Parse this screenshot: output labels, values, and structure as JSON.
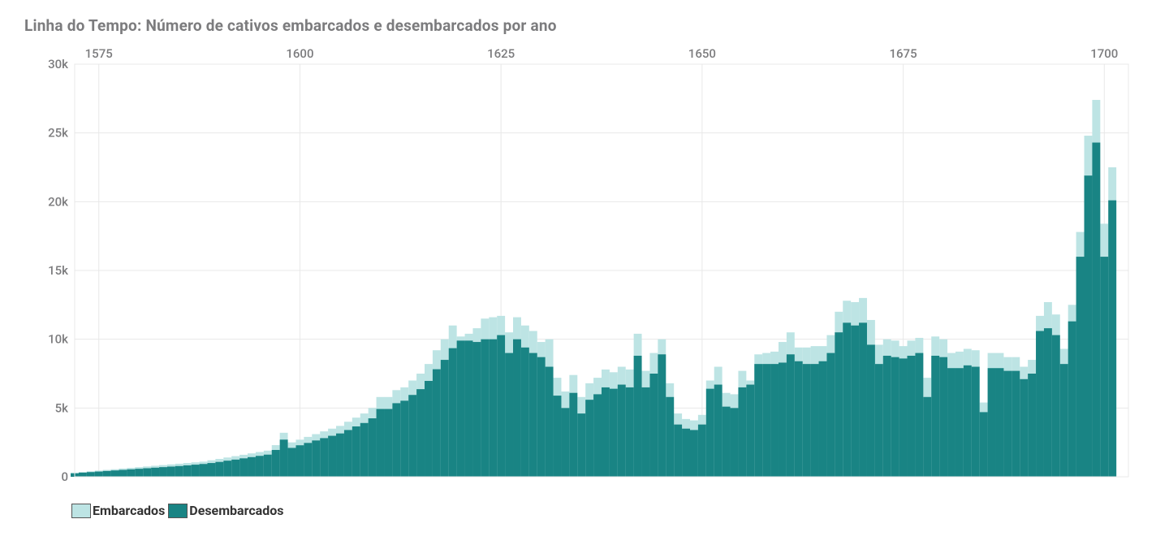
{
  "title": "Linha do Tempo: Número de cativos embarcados e desembarcados por ano",
  "chart": {
    "type": "bar-overlay",
    "background_color": "#ffffff",
    "grid_color": "#e8e8e8",
    "axis_label_color": "#7c7c7e",
    "title_color": "#7c7c7e",
    "title_fontsize": 19,
    "axis_label_fontsize": 15,
    "xlim": [
      1572,
      1703
    ],
    "ylim": [
      0,
      30000
    ],
    "x_ticks": [
      1575,
      1600,
      1625,
      1650,
      1675,
      1700
    ],
    "y_ticks": [
      0,
      5000,
      10000,
      15000,
      20000,
      25000,
      30000
    ],
    "y_tick_labels": [
      "0",
      "5k",
      "10k",
      "15k",
      "20k",
      "25k",
      "30k"
    ],
    "bar_width_years": 1,
    "series": [
      {
        "name": "Embarcados",
        "color": "#bde4e4",
        "legend_label": "Embarcados"
      },
      {
        "name": "Desembarcados",
        "color": "#198484",
        "legend_label": "Desembarcados"
      }
    ],
    "years": [
      1572,
      1573,
      1574,
      1575,
      1576,
      1577,
      1578,
      1579,
      1580,
      1581,
      1582,
      1583,
      1584,
      1585,
      1586,
      1587,
      1588,
      1589,
      1590,
      1591,
      1592,
      1593,
      1594,
      1595,
      1596,
      1597,
      1598,
      1599,
      1600,
      1601,
      1602,
      1603,
      1604,
      1605,
      1606,
      1607,
      1608,
      1609,
      1610,
      1611,
      1612,
      1613,
      1614,
      1615,
      1616,
      1617,
      1618,
      1619,
      1620,
      1621,
      1622,
      1623,
      1624,
      1625,
      1626,
      1627,
      1628,
      1629,
      1630,
      1631,
      1632,
      1633,
      1634,
      1635,
      1636,
      1637,
      1638,
      1639,
      1640,
      1641,
      1642,
      1643,
      1644,
      1645,
      1646,
      1647,
      1648,
      1649,
      1650,
      1651,
      1652,
      1653,
      1654,
      1655,
      1656,
      1657,
      1658,
      1659,
      1660,
      1661,
      1662,
      1663,
      1664,
      1665,
      1666,
      1667,
      1668,
      1669,
      1670,
      1671,
      1672,
      1673,
      1674,
      1675,
      1676,
      1677,
      1678,
      1679,
      1680,
      1681,
      1682,
      1683,
      1684,
      1685,
      1686,
      1687,
      1688,
      1689,
      1690,
      1691,
      1692,
      1693,
      1694,
      1695,
      1696,
      1697,
      1698,
      1699,
      1700,
      1701
    ],
    "embarcados": [
      300,
      350,
      400,
      450,
      500,
      550,
      600,
      650,
      700,
      750,
      800,
      850,
      900,
      950,
      1000,
      1050,
      1100,
      1200,
      1300,
      1400,
      1500,
      1600,
      1700,
      1800,
      1900,
      2300,
      3200,
      2500,
      2700,
      2900,
      3100,
      3300,
      3500,
      3700,
      4000,
      4300,
      4600,
      5000,
      5800,
      5800,
      6300,
      6500,
      7000,
      7500,
      8200,
      9200,
      10000,
      11000,
      10200,
      10400,
      10800,
      11500,
      11600,
      11700,
      10500,
      11600,
      11000,
      10600,
      9800,
      10000,
      7200,
      6200,
      7400,
      5800,
      6800,
      7200,
      7800,
      7600,
      8000,
      7800,
      10400,
      7700,
      9000,
      10000,
      6800,
      4600,
      4200,
      4100,
      4500,
      7000,
      8000,
      6100,
      6000,
      7700,
      7000,
      8900,
      9000,
      9100,
      9800,
      10500,
      9400,
      9400,
      9500,
      9500,
      10300,
      12000,
      12800,
      12700,
      13000,
      11400,
      9600,
      10000,
      9900,
      9500,
      9900,
      10100,
      7200,
      10200,
      10000,
      9000,
      9100,
      9300,
      9200,
      5400,
      9000,
      9000,
      8700,
      8700,
      8000,
      8500,
      11700,
      12700,
      11800,
      9300,
      12500,
      17800,
      24800,
      27400,
      18400,
      22500
    ],
    "desembarcados": [
      250,
      300,
      340,
      380,
      420,
      460,
      500,
      540,
      580,
      620,
      660,
      700,
      740,
      780,
      830,
      880,
      930,
      1000,
      1080,
      1170,
      1250,
      1340,
      1430,
      1520,
      1610,
      1950,
      2700,
      2100,
      2290,
      2460,
      2640,
      2810,
      2980,
      3150,
      3400,
      3660,
      3910,
      4250,
      4930,
      4930,
      5350,
      5530,
      5950,
      6370,
      6970,
      7820,
      8500,
      9350,
      9900,
      9900,
      9800,
      10000,
      10000,
      10300,
      9000,
      10000,
      9400,
      9000,
      8700,
      8000,
      5900,
      5000,
      6100,
      4600,
      5600,
      6000,
      6500,
      6400,
      6700,
      6500,
      8800,
      6500,
      7500,
      8900,
      5800,
      3800,
      3500,
      3400,
      3800,
      6400,
      6700,
      5100,
      5000,
      6500,
      6700,
      8200,
      8200,
      8200,
      8300,
      8900,
      8400,
      8200,
      8200,
      8400,
      9000,
      10500,
      11200,
      11000,
      11200,
      9600,
      8200,
      8800,
      8700,
      8600,
      8800,
      9000,
      5800,
      8800,
      8700,
      7900,
      7900,
      8100,
      8000,
      4700,
      7900,
      7900,
      7700,
      7700,
      7100,
      7500,
      10600,
      10800,
      10300,
      8200,
      11300,
      16000,
      21900,
      24300,
      16000,
      20100
    ]
  },
  "legend": {
    "label_color": "#333333",
    "label_fontsize": 16,
    "swatch_border": "#555555"
  }
}
